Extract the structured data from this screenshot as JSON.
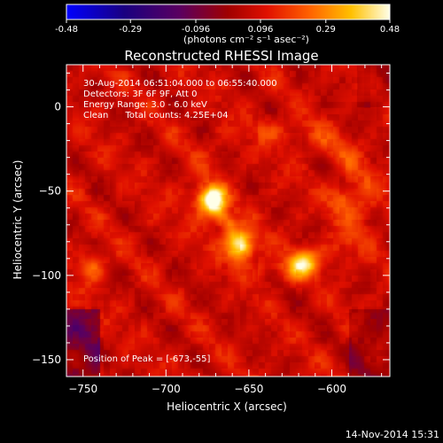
{
  "chart_data": {
    "type": "heatmap",
    "title": "Reconstructed RHESSI Image",
    "xlabel": "Heliocentric X (arcsec)",
    "ylabel": "Heliocentric Y (arcsec)",
    "xlim": [
      -760,
      -565
    ],
    "ylim": [
      -160,
      25
    ],
    "x_ticks": [
      -750,
      -700,
      -650,
      -600
    ],
    "y_ticks": [
      -150,
      -100,
      -50,
      0
    ],
    "grid": false,
    "colorbar": {
      "min": -0.48,
      "max": 0.48,
      "ticks": [
        "-0.48",
        "-0.29",
        "-0.096",
        "0.096",
        "0.29",
        "0.48"
      ],
      "unit_label": "(photons cm⁻² s⁻¹ asec⁻²)",
      "placement": "top"
    },
    "sources": [
      {
        "x": -673,
        "y": -55,
        "peak": 0.48
      },
      {
        "x": -655,
        "y": -82,
        "peak": 0.4
      },
      {
        "x": -618,
        "y": -92,
        "peak": 0.27
      },
      {
        "x": -745,
        "y": -95,
        "peak": 0.17
      },
      {
        "x": -593,
        "y": -55,
        "peak": 0.16
      }
    ]
  },
  "annotations": {
    "time_range": "30-Aug-2014 06:51:04.000 to 06:55:40.000",
    "detectors": "Detectors: 3F 6F 9F, Att 0",
    "energy": "Energy Range: 3.0 - 6.0 keV",
    "clean_info": "Clean      Total counts: 4.25E+04",
    "peak_position": "Position of Peak = [-673,-55]"
  },
  "footer": {
    "timestamp": "14-Nov-2014 15:31"
  }
}
